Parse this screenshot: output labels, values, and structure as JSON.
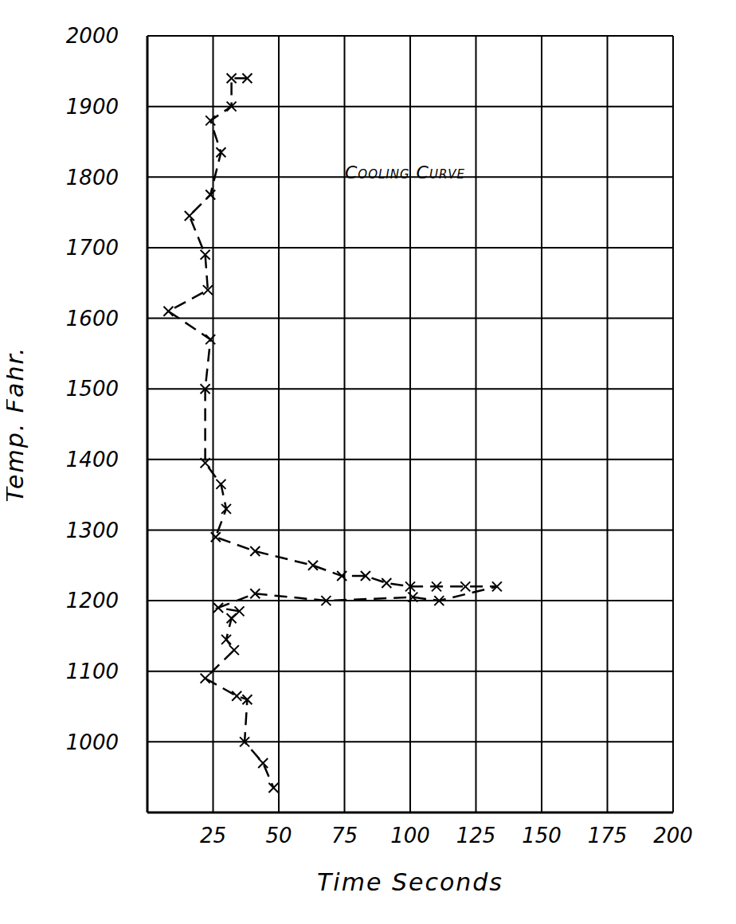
{
  "chart_data": {
    "type": "scatter",
    "title": "Cooling Curve",
    "x_label": "Time Seconds",
    "y_label": "Temp. Fahr.",
    "x": [
      38,
      32,
      32,
      24,
      28,
      24,
      16,
      22,
      23,
      8,
      24,
      22,
      22,
      28,
      30,
      26,
      41,
      63,
      74,
      83,
      91,
      100,
      110,
      121,
      133,
      111,
      101,
      68,
      41,
      27,
      35,
      32,
      30,
      33,
      22,
      34,
      38,
      37,
      44,
      48
    ],
    "values": [
      1940,
      1940,
      1900,
      1880,
      1835,
      1775,
      1745,
      1690,
      1640,
      1610,
      1570,
      1500,
      1395,
      1365,
      1330,
      1290,
      1270,
      1250,
      1235,
      1235,
      1225,
      1220,
      1220,
      1220,
      1220,
      1200,
      1205,
      1200,
      1210,
      1190,
      1185,
      1175,
      1145,
      1130,
      1090,
      1065,
      1060,
      1000,
      970,
      935
    ],
    "color": "#000000",
    "marker": "x",
    "line_style": "dashed",
    "xlim": [
      0,
      200
    ],
    "xticks": [
      25,
      50,
      75,
      100,
      125,
      150,
      175,
      200
    ],
    "ylim": [
      900,
      2000
    ],
    "yticks": [
      1000,
      1100,
      1200,
      1300,
      1400,
      1500,
      1600,
      1700,
      1800,
      1900,
      2000
    ],
    "grid": true
  }
}
